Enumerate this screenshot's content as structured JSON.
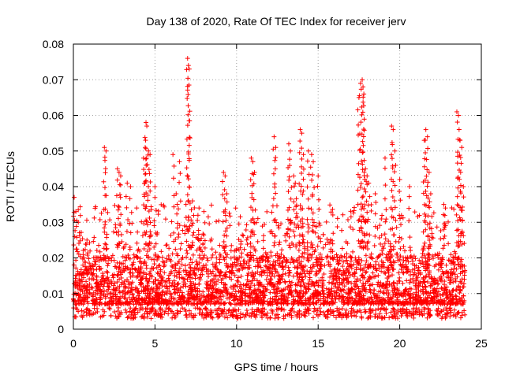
{
  "chart_data": {
    "type": "scatter",
    "title": "Day 138 of 2020, Rate Of TEC Index for receiver jerv",
    "xlabel": "GPS time / hours",
    "ylabel": "ROTI / TECUs",
    "xlim": [
      0,
      25
    ],
    "ylim": [
      0,
      0.08
    ],
    "xticks": [
      0,
      5,
      10,
      15,
      20,
      25
    ],
    "yticks": [
      0,
      0.01,
      0.02,
      0.03,
      0.04,
      0.05,
      0.06,
      0.07,
      0.08
    ],
    "grid": true,
    "marker": "+",
    "color": "#ff0000",
    "series": [
      {
        "name": "ROTI",
        "x": [
          0.05,
          0.15,
          0.3,
          1.9,
          2.0,
          2.7,
          2.8,
          2.9,
          3.3,
          3.5,
          4.3,
          4.4,
          4.45,
          4.5,
          4.6,
          4.7,
          5.0,
          6.1,
          6.3,
          6.5,
          6.9,
          7.0,
          7.05,
          7.1,
          7.3,
          7.7,
          8.0,
          9.2,
          9.3,
          9.4,
          10.9,
          11.0,
          11.1,
          12.3,
          12.4,
          13.2,
          13.3,
          13.5,
          13.6,
          13.9,
          14.0,
          14.1,
          14.4,
          14.6,
          14.7,
          15.0,
          17.5,
          17.6,
          17.7,
          17.75,
          17.8,
          17.9,
          18.0,
          18.1,
          18.5,
          19.1,
          19.5,
          19.6,
          19.7,
          20.0,
          20.6,
          21.5,
          21.6,
          21.7,
          21.8,
          21.9,
          22.7,
          22.8,
          23.5,
          23.6,
          23.7,
          23.8,
          23.9
        ],
        "y": [
          0.037,
          0.033,
          0.03,
          0.051,
          0.05,
          0.045,
          0.044,
          0.043,
          0.041,
          0.04,
          0.048,
          0.051,
          0.058,
          0.057,
          0.05,
          0.049,
          0.04,
          0.049,
          0.038,
          0.047,
          0.035,
          0.076,
          0.074,
          0.073,
          0.036,
          0.034,
          0.033,
          0.044,
          0.043,
          0.038,
          0.048,
          0.047,
          0.044,
          0.054,
          0.051,
          0.052,
          0.05,
          0.043,
          0.041,
          0.056,
          0.055,
          0.049,
          0.05,
          0.049,
          0.047,
          0.043,
          0.065,
          0.069,
          0.07,
          0.068,
          0.066,
          0.045,
          0.043,
          0.041,
          0.038,
          0.048,
          0.057,
          0.056,
          0.05,
          0.042,
          0.04,
          0.053,
          0.056,
          0.054,
          0.044,
          0.038,
          0.035,
          0.034,
          0.061,
          0.06,
          0.053,
          0.051,
          0.04
        ],
        "bulk": {
          "x_range": [
            0,
            24
          ],
          "y_floor": [
            0.003,
            0.006
          ],
          "y_typical": [
            0.007,
            0.02
          ],
          "y_upper_tail": 0.035
        }
      }
    ]
  }
}
